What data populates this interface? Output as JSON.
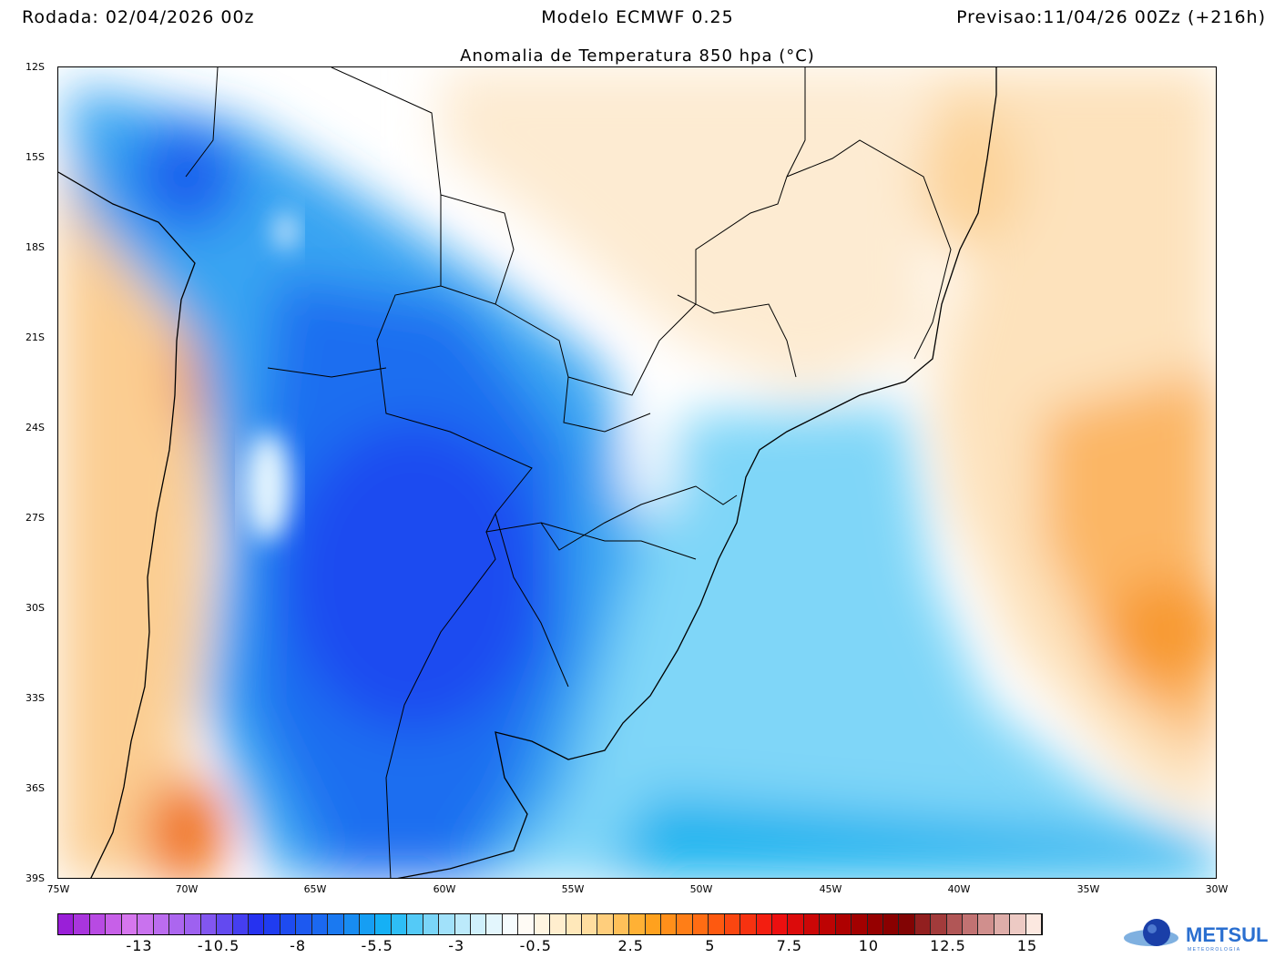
{
  "header": {
    "run": "Rodada: 02/04/2026 00z",
    "model": "Modelo ECMWF 0.25",
    "forecast": "Previsao:11/04/26 00Zz (+216h)"
  },
  "title": "Anomalia de Temperatura 850 hpa (°C)",
  "lat_labels": [
    "12S",
    "15S",
    "18S",
    "21S",
    "24S",
    "27S",
    "30S",
    "33S",
    "36S",
    "39S"
  ],
  "lon_labels": [
    "75W",
    "70W",
    "65W",
    "60W",
    "55W",
    "50W",
    "45W",
    "40W",
    "35W",
    "30W"
  ],
  "colorbar": {
    "labels": [
      "-13",
      "-10.5",
      "-8",
      "-5.5",
      "-3",
      "-0.5",
      "2.5",
      "5",
      "7.5",
      "10",
      "12.5",
      "15"
    ],
    "stops": [
      "#9a1fd8",
      "#d777ee",
      "#9c60f0",
      "#2030f0",
      "#1b6cf0",
      "#14b6f5",
      "#b0e6fa",
      "#ffffff",
      "#ffe4b0",
      "#ffa820",
      "#ff6010",
      "#f01010",
      "#b00000",
      "#800000",
      "#c07070",
      "#fce8e0"
    ]
  },
  "logo": {
    "text": "METSUL",
    "sub": "METEOROLOGIA"
  }
}
